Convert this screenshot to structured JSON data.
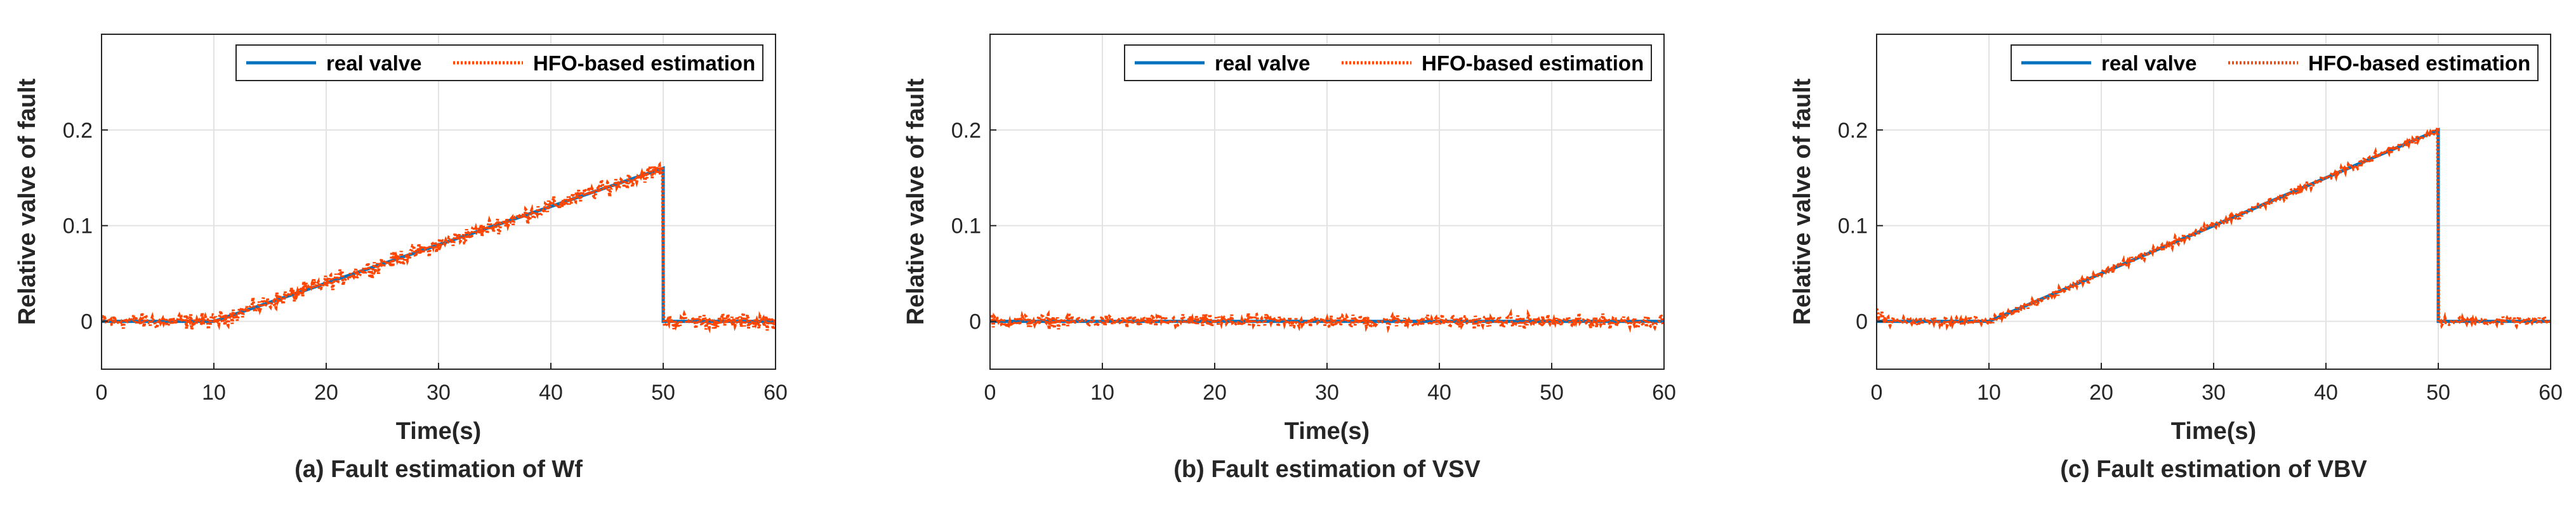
{
  "chart_data": [
    {
      "type": "line",
      "title": "(a) Fault estimation of Wf",
      "xlabel": "Time(s)",
      "ylabel": "Relative valve of fault",
      "xlim": [
        0,
        60
      ],
      "ylim": [
        -0.05,
        0.3
      ],
      "xticks": [
        0,
        10,
        20,
        30,
        40,
        50,
        60
      ],
      "yticks": [
        0,
        0.1,
        0.2
      ],
      "xtick_labels": [
        "0",
        "10",
        "20",
        "30",
        "40",
        "50",
        "60"
      ],
      "ytick_labels": [
        "0",
        "0.1",
        "0.2"
      ],
      "grid": true,
      "legend": {
        "position": "top-right",
        "entries": [
          "real valve",
          "HFO-based estimation"
        ]
      },
      "series": [
        {
          "name": "real valve",
          "style": "solid",
          "color": "#0072BD",
          "x": [
            0,
            10,
            50,
            50,
            60
          ],
          "y": [
            0,
            0,
            0.16,
            0,
            0
          ]
        },
        {
          "name": "HFO-based estimation",
          "style": "dotted",
          "color": "#FF4500",
          "noise_amplitude": 0.012,
          "x": [
            0,
            10,
            50,
            50,
            60
          ],
          "y": [
            0,
            0,
            0.16,
            0,
            0
          ]
        }
      ]
    },
    {
      "type": "line",
      "title": "(b) Fault estimation of VSV",
      "xlabel": "Time(s)",
      "ylabel": "Relative valve of fault",
      "xlim": [
        0,
        60
      ],
      "ylim": [
        -0.05,
        0.3
      ],
      "xticks": [
        0,
        10,
        20,
        30,
        40,
        50,
        60
      ],
      "yticks": [
        0,
        0.1,
        0.2
      ],
      "xtick_labels": [
        "0",
        "10",
        "20",
        "30",
        "40",
        "50",
        "60"
      ],
      "ytick_labels": [
        "0",
        "0.1",
        "0.2"
      ],
      "grid": true,
      "legend": {
        "position": "top-right",
        "entries": [
          "real valve",
          "HFO-based estimation"
        ]
      },
      "series": [
        {
          "name": "real valve",
          "style": "solid",
          "color": "#0072BD",
          "x": [
            0,
            60
          ],
          "y": [
            0,
            0
          ]
        },
        {
          "name": "HFO-based estimation",
          "style": "dotted",
          "color": "#FF4500",
          "noise_amplitude": 0.01,
          "x": [
            0,
            60
          ],
          "y": [
            0,
            0
          ]
        }
      ]
    },
    {
      "type": "line",
      "title": "(c) Fault estimation of VBV",
      "xlabel": "Time(s)",
      "ylabel": "Relative valve of fault",
      "xlim": [
        0,
        60
      ],
      "ylim": [
        -0.05,
        0.3
      ],
      "xticks": [
        0,
        10,
        20,
        30,
        40,
        50,
        60
      ],
      "yticks": [
        0,
        0.1,
        0.2
      ],
      "xtick_labels": [
        "0",
        "10",
        "20",
        "30",
        "40",
        "50",
        "60"
      ],
      "ytick_labels": [
        "0",
        "0.1",
        "0.2"
      ],
      "grid": true,
      "legend": {
        "position": "top-right",
        "entries": [
          "real valve",
          "HFO-based estimation"
        ]
      },
      "series": [
        {
          "name": "real valve",
          "style": "solid",
          "color": "#0072BD",
          "x": [
            0,
            10,
            50,
            50,
            60
          ],
          "y": [
            0,
            0,
            0.2,
            0,
            0
          ]
        },
        {
          "name": "HFO-based estimation",
          "style": "dotted",
          "color": "#FF4500",
          "noise_amplitude": 0.006,
          "x": [
            0,
            1,
            10,
            50,
            50,
            60
          ],
          "y": [
            0.01,
            0,
            0,
            0.2,
            0,
            0
          ]
        }
      ]
    }
  ]
}
